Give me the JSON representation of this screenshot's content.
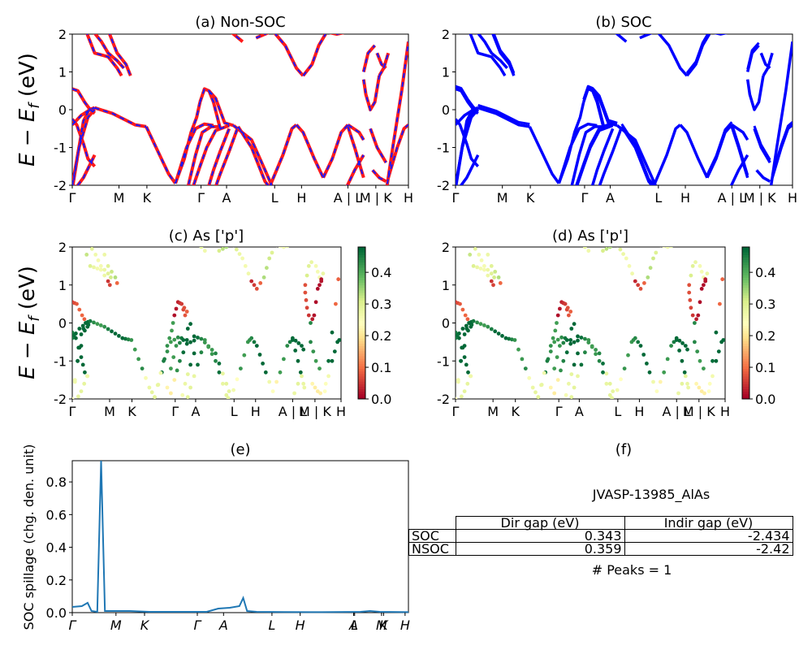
{
  "figure": {
    "material_title": "JVASP-13985_AlAs",
    "peaks_text": "# Peaks = 1",
    "panel_e_title": "(e)",
    "panel_f_title": "(f)"
  },
  "table": {
    "col_headers": [
      "Dir gap (eV)",
      "Indir gap (eV)"
    ],
    "rows": [
      {
        "label": "SOC",
        "dir": "0.343",
        "indir": "-2.434"
      },
      {
        "label": "NSOC",
        "dir": "0.359",
        "indir": "-2.42"
      }
    ]
  },
  "chart_data": [
    {
      "type": "line",
      "title": "(a) Non-SOC",
      "ylabel": "E − E_f (eV)",
      "ylim": [
        -2,
        2
      ],
      "yticks": [
        2,
        1,
        0,
        -1,
        -2
      ],
      "xticks": [
        "Γ",
        "M",
        "K",
        "Γ",
        "A",
        "L",
        "H",
        "A | L",
        "M | K",
        "H"
      ],
      "series": [
        {
          "color": "#ff1a1a",
          "style": "solid",
          "bands": [
            [
              [
                0,
                -2.1
              ],
              [
                0.3,
                -1
              ],
              [
                0.7,
                -0.2
              ],
              [
                1.0,
                0.0
              ]
            ],
            [
              [
                0,
                -2.2
              ],
              [
                0.5,
                -1.8
              ],
              [
                1.0,
                -1.2
              ]
            ],
            [
              [
                0,
                -0.4
              ],
              [
                0.4,
                -0.15
              ],
              [
                0.8,
                0.0
              ],
              [
                1.0,
                0.05
              ]
            ],
            [
              [
                0,
                0.55
              ],
              [
                0.25,
                0.5
              ],
              [
                0.55,
                0.2
              ],
              [
                0.8,
                0.0
              ],
              [
                1.0,
                -0.1
              ]
            ],
            [
              [
                0,
                -0.25
              ],
              [
                0.2,
                -0.4
              ],
              [
                0.5,
                -0.9
              ],
              [
                0.7,
                -1.3
              ],
              [
                1.0,
                -1.5
              ]
            ],
            [
              [
                0,
                -2.0
              ],
              [
                0.3,
                -1.0
              ],
              [
                0.5,
                -0.3
              ],
              [
                0.75,
                0.0
              ],
              [
                1.0,
                0.05
              ]
            ],
            [
              [
                1.0,
                0.05
              ],
              [
                1.8,
                -0.1
              ],
              [
                2.8,
                -0.4
              ],
              [
                3.3,
                -0.45
              ]
            ],
            [
              [
                0.6,
                2.1
              ],
              [
                1.0,
                1.5
              ],
              [
                1.6,
                1.4
              ],
              [
                2.0,
                1.1
              ],
              [
                2.2,
                0.9
              ]
            ],
            [
              [
                0.9,
                2.1
              ],
              [
                1.3,
                1.8
              ],
              [
                1.6,
                1.5
              ],
              [
                2.0,
                1.3
              ],
              [
                2.3,
                1.1
              ]
            ],
            [
              [
                1.6,
                2.1
              ],
              [
                2.0,
                1.5
              ],
              [
                2.4,
                1.2
              ],
              [
                2.6,
                0.9
              ]
            ],
            [
              [
                3.3,
                -0.45
              ],
              [
                3.9,
                -1.2
              ],
              [
                4.3,
                -1.7
              ],
              [
                4.6,
                -1.95
              ]
            ],
            [
              [
                4.6,
                -1.95
              ],
              [
                5.0,
                -1.3
              ],
              [
                5.3,
                -0.6
              ],
              [
                5.55,
                -0.2
              ],
              [
                5.7,
                0.2
              ]
            ],
            [
              [
                5.7,
                0.2
              ],
              [
                5.9,
                0.55
              ],
              [
                6.1,
                0.5
              ],
              [
                6.3,
                0.2
              ],
              [
                6.6,
                -0.5
              ]
            ],
            [
              [
                4.6,
                -1.95
              ],
              [
                5.1,
                -1.0
              ],
              [
                5.5,
                -0.5
              ],
              [
                5.9,
                -0.38
              ],
              [
                6.3,
                -0.42
              ]
            ],
            [
              [
                5.1,
                -2.2
              ],
              [
                5.5,
                -1.2
              ],
              [
                5.8,
                -0.6
              ],
              [
                6.2,
                -0.45
              ],
              [
                6.6,
                -0.45
              ]
            ],
            [
              [
                5.3,
                -2.2
              ],
              [
                5.7,
                -1.5
              ],
              [
                6.0,
                -1.0
              ],
              [
                6.4,
                -0.55
              ],
              [
                7.0,
                -0.42
              ]
            ],
            [
              [
                6.0,
                -2.2
              ],
              [
                6.3,
                -1.6
              ],
              [
                6.6,
                -1.1
              ],
              [
                7.0,
                -0.5
              ]
            ],
            [
              [
                6.3,
                -2.2
              ],
              [
                6.6,
                -1.7
              ],
              [
                7.0,
                -1.1
              ],
              [
                7.4,
                -0.45
              ]
            ],
            [
              [
                6.1,
                0.5
              ],
              [
                6.4,
                0.3
              ],
              [
                6.8,
                -0.35
              ],
              [
                7.2,
                -0.42
              ]
            ],
            [
              [
                7.0,
                2.1
              ],
              [
                7.6,
                1.8
              ]
            ],
            [
              [
                7.2,
                -0.42
              ],
              [
                8.0,
                -0.8
              ],
              [
                8.6,
                -1.6
              ],
              [
                8.9,
                -2.0
              ]
            ],
            [
              [
                7.4,
                -0.45
              ],
              [
                8.0,
                -1.0
              ],
              [
                8.6,
                -1.9
              ],
              [
                8.8,
                -2.05
              ]
            ],
            [
              [
                8.8,
                -2.05
              ],
              [
                9.4,
                -1.2
              ],
              [
                9.8,
                -0.5
              ],
              [
                10.0,
                -0.4
              ]
            ],
            [
              [
                10.0,
                -0.4
              ],
              [
                10.3,
                -0.6
              ],
              [
                10.8,
                -1.3
              ],
              [
                11.2,
                -1.8
              ]
            ],
            [
              [
                11.2,
                -1.8
              ],
              [
                11.6,
                -1.3
              ],
              [
                12.0,
                -0.6
              ],
              [
                12.3,
                -0.4
              ]
            ],
            [
              [
                8.2,
                1.9
              ],
              [
                8.8,
                2.05
              ]
            ],
            [
              [
                9.0,
                2.05
              ],
              [
                9.5,
                1.7
              ],
              [
                10.0,
                1.1
              ],
              [
                10.3,
                0.9
              ]
            ],
            [
              [
                10.3,
                0.9
              ],
              [
                10.7,
                1.2
              ],
              [
                11.0,
                1.7
              ],
              [
                11.3,
                2.0
              ]
            ],
            [
              [
                11.4,
                2.05
              ],
              [
                11.8,
                2.0
              ],
              [
                12.2,
                2.05
              ]
            ],
            [
              [
                12.3,
                -0.4
              ],
              [
                12.8,
                -0.6
              ],
              [
                13.0,
                -0.8
              ]
            ],
            [
              [
                12.3,
                -0.45
              ],
              [
                12.6,
                -1.0
              ],
              [
                12.9,
                -1.6
              ],
              [
                13.0,
                -1.8
              ]
            ],
            [
              [
                12.2,
                -2.1
              ],
              [
                12.6,
                -1.6
              ],
              [
                13.0,
                -1.2
              ]
            ],
            [
              [
                13.0,
                0.8
              ],
              [
                13.1,
                0.4
              ],
              [
                13.3,
                0.0
              ],
              [
                13.5,
                0.2
              ],
              [
                13.7,
                0.9
              ]
            ],
            [
              [
                13.0,
                1.0
              ],
              [
                13.2,
                1.5
              ],
              [
                13.5,
                1.7
              ]
            ],
            [
              [
                13.7,
                0.9
              ],
              [
                13.9,
                1.1
              ],
              [
                14.1,
                1.5
              ]
            ],
            [
              [
                13.6,
                1.5
              ],
              [
                13.8,
                1.2
              ],
              [
                14.0,
                1.1
              ]
            ],
            [
              [
                13.3,
                -0.5
              ],
              [
                13.6,
                -1.0
              ],
              [
                14.0,
                -1.4
              ]
            ],
            [
              [
                13.4,
                -1.6
              ],
              [
                13.7,
                -1.8
              ],
              [
                14.0,
                -1.9
              ]
            ],
            [
              [
                14.0,
                -2.2
              ],
              [
                14.3,
                -1.0
              ],
              [
                14.7,
                0.5
              ],
              [
                15.0,
                1.8
              ]
            ],
            [
              [
                14.1,
                -1.8
              ],
              [
                14.5,
                -1.0
              ],
              [
                14.8,
                -0.5
              ],
              [
                15.0,
                -0.4
              ]
            ]
          ]
        },
        {
          "color": "#1a1aff",
          "style": "dashed",
          "bands": "same"
        }
      ]
    },
    {
      "type": "line",
      "title": "(b) SOC",
      "ylim": [
        -2,
        2
      ],
      "yticks": [
        2,
        1,
        0,
        -1,
        -2
      ],
      "xticks": [
        "Γ",
        "M",
        "K",
        "Γ",
        "A",
        "L",
        "H",
        "A | L",
        "M | K",
        "H"
      ],
      "series": [
        {
          "color": "#0000ff",
          "style": "solid",
          "bands": "same_split"
        }
      ]
    },
    {
      "type": "scatter",
      "title": "(c)  As ['p']",
      "ylabel": "E − E_f (eV)",
      "ylim": [
        -2,
        2
      ],
      "yticks": [
        2,
        1,
        0,
        -1,
        -2
      ],
      "xticks": [
        "Γ",
        "M",
        "K",
        "Γ",
        "A",
        "L",
        "H",
        "A | L",
        "M | K",
        "H"
      ],
      "colorbar": {
        "ticks": [
          "0.4",
          "0.3",
          "0.2",
          "0.1",
          "0.0"
        ],
        "range": [
          0,
          0.48
        ],
        "cmap": "RdYlGn"
      }
    },
    {
      "type": "scatter",
      "title": "(d) As ['p']",
      "ylim": [
        -2,
        2
      ],
      "yticks": [
        2,
        1,
        0,
        -1,
        -2
      ],
      "xticks": [
        "Γ",
        "M",
        "K",
        "Γ",
        "A",
        "L",
        "H",
        "A | L",
        "M | K",
        "H"
      ],
      "colorbar": {
        "ticks": [
          "0.4",
          "0.3",
          "0.2",
          "0.1",
          "0.0"
        ],
        "range": [
          0,
          0.48
        ],
        "cmap": "RdYlGn"
      }
    },
    {
      "type": "line",
      "title": "(e)",
      "ylabel": "SOC spillage (chg. den. unit)",
      "ylim": [
        0,
        0.93
      ],
      "yticks": [
        "0.0",
        "0.2",
        "0.4",
        "0.6",
        "0.8"
      ],
      "xticks": [
        "Γ",
        "M",
        "K",
        "Γ",
        "A",
        "L",
        "H",
        "A",
        "L",
        "M",
        "K",
        "H"
      ],
      "series": [
        {
          "color": "#1f77b4",
          "points": [
            [
              0,
              0.035
            ],
            [
              0.5,
              0.04
            ],
            [
              0.8,
              0.06
            ],
            [
              1.0,
              0.01
            ],
            [
              1.3,
              0.005
            ],
            [
              1.5,
              0.93
            ],
            [
              1.7,
              0.01
            ],
            [
              2.0,
              0.01
            ],
            [
              3,
              0.01
            ],
            [
              4.0,
              0.005
            ],
            [
              5.0,
              0.005
            ],
            [
              6.0,
              0.005
            ],
            [
              7.0,
              0.005
            ],
            [
              7.6,
              0.025
            ],
            [
              8.2,
              0.03
            ],
            [
              8.7,
              0.04
            ],
            [
              8.9,
              0.09
            ],
            [
              9.1,
              0.01
            ],
            [
              9.6,
              0.005
            ],
            [
              11,
              0.004
            ],
            [
              13,
              0.003
            ],
            [
              15,
              0.005
            ],
            [
              15.5,
              0.01
            ],
            [
              16.0,
              0.005
            ],
            [
              17.5,
              0.003
            ]
          ]
        }
      ]
    }
  ]
}
